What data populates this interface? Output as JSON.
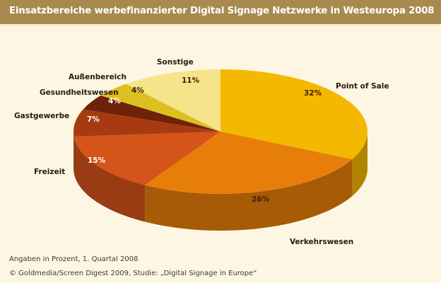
{
  "chart_data": {
    "type": "pie",
    "style": "3d",
    "title": "Einsatzbereiche werbefinanzierter Digital Signage Netzwerke in Westeuropa 2008",
    "unit": "%",
    "categories": [
      "Point of Sale",
      "Verkehrswesen",
      "Freizeit",
      "Gastgewerbe",
      "Gesundheitswesen",
      "Außenbereich",
      "Sonstige"
    ],
    "values": [
      32,
      26,
      15,
      7,
      4,
      4,
      11
    ],
    "value_labels": [
      "32%",
      "26%",
      "15%",
      "7%",
      "4%",
      "4%",
      "11%"
    ],
    "colors": [
      "#f5b800",
      "#e87e0a",
      "#d4541a",
      "#a83a12",
      "#6e2208",
      "#dcc020",
      "#f6e48a"
    ],
    "start_angle": "12 o'clock",
    "direction": "clockwise",
    "legend": "none (direct labels)",
    "notes": [
      "Angaben in Prozent, 1. Quartal 2008",
      "© Goldmedia/Screen Digest 2009, Studie: „Digital Signage in Europe“"
    ]
  },
  "colors": {
    "header": "#a88a4e",
    "background": "#fdf6e3"
  }
}
